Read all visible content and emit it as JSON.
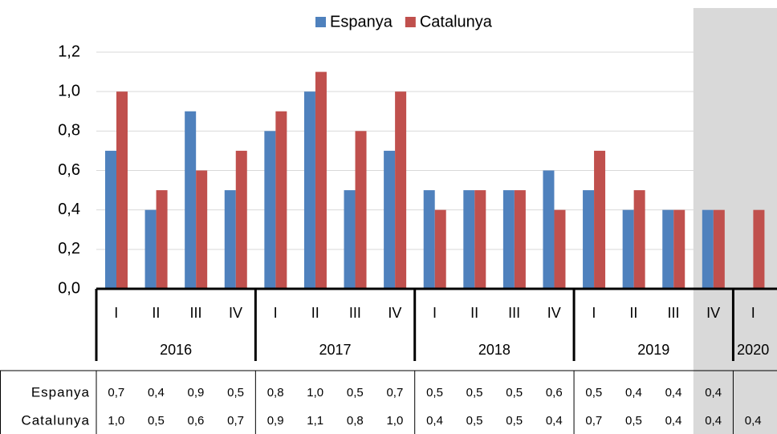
{
  "chart_data": {
    "type": "bar",
    "groups": [
      {
        "label": "2016",
        "categories": [
          "I",
          "II",
          "III",
          "IV"
        ]
      },
      {
        "label": "2017",
        "categories": [
          "I",
          "II",
          "III",
          "IV"
        ]
      },
      {
        "label": "2018",
        "categories": [
          "I",
          "II",
          "III",
          "IV"
        ]
      },
      {
        "label": "2019",
        "categories": [
          "I",
          "II",
          "III",
          "IV"
        ]
      },
      {
        "label": "2020",
        "categories": [
          "I"
        ]
      }
    ],
    "series": [
      {
        "name": "Espanya",
        "color": "#4f81bd",
        "values": [
          0.7,
          0.4,
          0.9,
          0.5,
          0.8,
          1.0,
          0.5,
          0.7,
          0.5,
          0.5,
          0.5,
          0.6,
          0.5,
          0.4,
          0.4,
          0.4,
          null
        ],
        "value_labels": [
          "0,7",
          "0,4",
          "0,9",
          "0,5",
          "0,8",
          "1,0",
          "0,5",
          "0,7",
          "0,5",
          "0,5",
          "0,5",
          "0,6",
          "0,5",
          "0,4",
          "0,4",
          "0,4",
          null
        ]
      },
      {
        "name": "Catalunya",
        "color": "#c0504d",
        "values": [
          1.0,
          0.5,
          0.6,
          0.7,
          0.9,
          1.1,
          0.8,
          1.0,
          0.4,
          0.5,
          0.5,
          0.4,
          0.7,
          0.5,
          0.4,
          0.4,
          0.4
        ],
        "value_labels": [
          "1,0",
          "0,5",
          "0,6",
          "0,7",
          "0,9",
          "1,1",
          "0,8",
          "1,0",
          "0,4",
          "0,5",
          "0,5",
          "0,4",
          "0,7",
          "0,5",
          "0,4",
          "0,4",
          "0,4"
        ]
      }
    ],
    "ylim": [
      0,
      1.2
    ],
    "yticks": [
      {
        "value": 0,
        "label": "0,0"
      },
      {
        "value": 0.2,
        "label": "0,2"
      },
      {
        "value": 0.4,
        "label": "0,4"
      },
      {
        "value": 0.6,
        "label": "0,6"
      },
      {
        "value": 0.8,
        "label": "0,8"
      },
      {
        "value": 1.0,
        "label": "1,0"
      },
      {
        "value": 1.2,
        "label": "1,2"
      }
    ],
    "grid": true,
    "legend": "top",
    "shade_from": 15,
    "shade_color": "#d9d9d9"
  }
}
